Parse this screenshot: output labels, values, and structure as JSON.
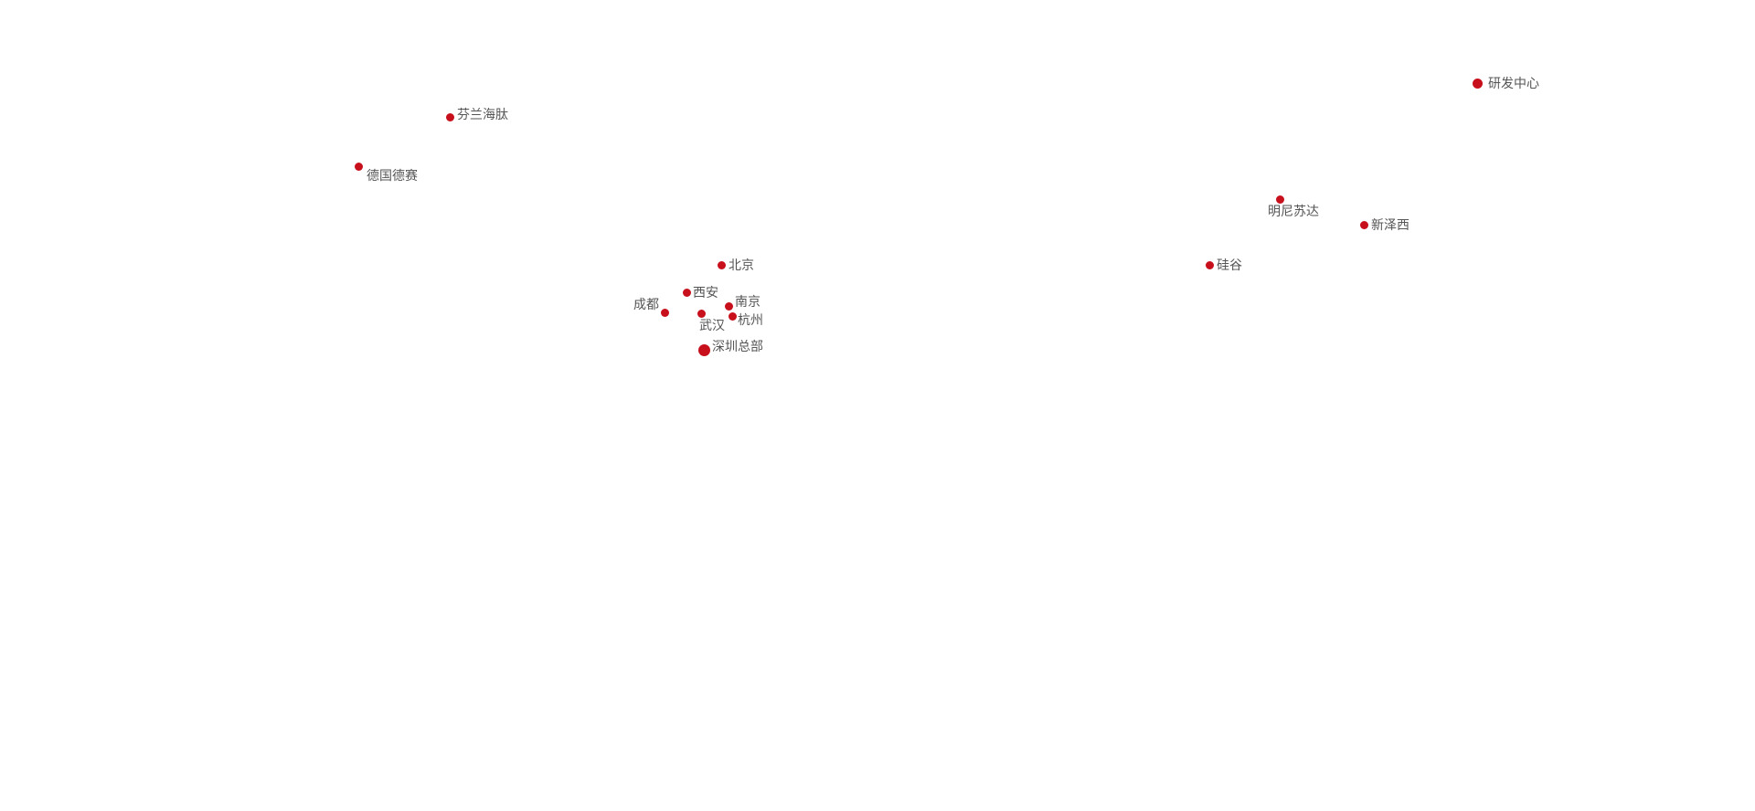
{
  "map": {
    "marker_color": "#c8101c",
    "label_color": "#555555",
    "locations": [
      {
        "name": "芬兰海肽"
      },
      {
        "name": "德国德赛"
      },
      {
        "name": "北京"
      },
      {
        "name": "西安"
      },
      {
        "name": "成都"
      },
      {
        "name": "南京"
      },
      {
        "name": "武汉"
      },
      {
        "name": "杭州"
      },
      {
        "name": "深圳总部"
      },
      {
        "name": "研发中心"
      },
      {
        "name": "明尼苏达"
      },
      {
        "name": "新泽西"
      },
      {
        "name": "硅谷"
      }
    ]
  }
}
